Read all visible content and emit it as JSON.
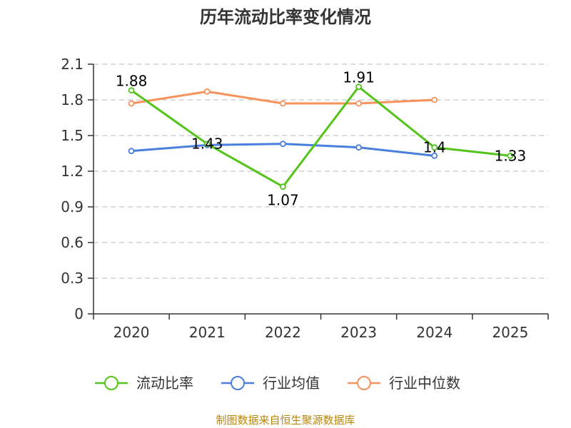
{
  "chart_data": {
    "type": "line",
    "title": "历年流动比率变化情况",
    "categories": [
      "2020",
      "2021",
      "2022",
      "2023",
      "2024",
      "2025"
    ],
    "ylim": [
      0,
      2.1
    ],
    "yticks": [
      "0",
      "0.3",
      "0.6",
      "0.9",
      "1.2",
      "1.5",
      "1.8",
      "2.1"
    ],
    "grid": true,
    "legend_position": "bottom",
    "series": [
      {
        "name": "流动比率",
        "color": "#52c41a",
        "values": [
          1.88,
          1.43,
          1.07,
          1.91,
          1.4,
          1.33
        ],
        "labels": [
          "1.88",
          "1.43",
          "1.07",
          "1.91",
          "1.4",
          "1.33"
        ]
      },
      {
        "name": "行业均值",
        "color": "#4a7fe0",
        "values": [
          1.37,
          1.42,
          1.43,
          1.4,
          1.33,
          null
        ]
      },
      {
        "name": "行业中位数",
        "color": "#f7925a",
        "values": [
          1.77,
          1.87,
          1.77,
          1.77,
          1.8,
          null
        ]
      }
    ]
  },
  "footer": {
    "source": "制图数据来自恒生聚源数据库"
  }
}
